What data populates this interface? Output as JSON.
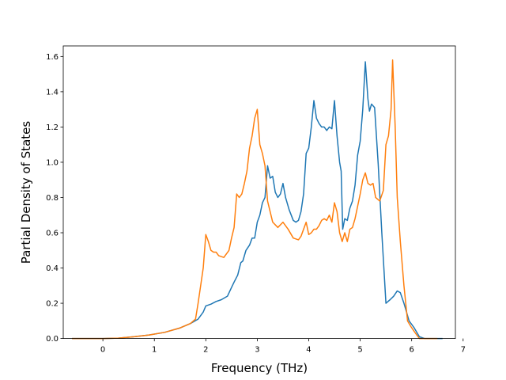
{
  "chart_data": {
    "type": "line",
    "title": "",
    "xlabel": "Frequency (THz)",
    "ylabel": "Partial Density of States",
    "xlim": [
      -0.77,
      6.85
    ],
    "ylim": [
      0.0,
      1.66
    ],
    "xticks": [
      0,
      1,
      2,
      3,
      4,
      5,
      6,
      7
    ],
    "yticks": [
      0.0,
      0.2,
      0.4,
      0.6,
      0.8,
      1.0,
      1.2,
      1.4,
      1.6
    ],
    "grid": false,
    "legend": "none",
    "series": [
      {
        "color": "#1f77b4",
        "points": [
          [
            -0.6,
            0.0
          ],
          [
            0.0,
            0.0
          ],
          [
            0.3,
            0.002
          ],
          [
            0.6,
            0.01
          ],
          [
            0.9,
            0.02
          ],
          [
            1.2,
            0.035
          ],
          [
            1.5,
            0.06
          ],
          [
            1.7,
            0.085
          ],
          [
            1.85,
            0.11
          ],
          [
            1.95,
            0.15
          ],
          [
            2.0,
            0.185
          ],
          [
            2.1,
            0.195
          ],
          [
            2.2,
            0.21
          ],
          [
            2.3,
            0.22
          ],
          [
            2.42,
            0.24
          ],
          [
            2.5,
            0.29
          ],
          [
            2.55,
            0.32
          ],
          [
            2.62,
            0.36
          ],
          [
            2.68,
            0.43
          ],
          [
            2.72,
            0.44
          ],
          [
            2.78,
            0.5
          ],
          [
            2.85,
            0.53
          ],
          [
            2.9,
            0.57
          ],
          [
            2.95,
            0.57
          ],
          [
            3.0,
            0.66
          ],
          [
            3.05,
            0.7
          ],
          [
            3.1,
            0.77
          ],
          [
            3.15,
            0.8
          ],
          [
            3.2,
            0.98
          ],
          [
            3.25,
            0.91
          ],
          [
            3.3,
            0.92
          ],
          [
            3.35,
            0.83
          ],
          [
            3.4,
            0.8
          ],
          [
            3.45,
            0.82
          ],
          [
            3.5,
            0.88
          ],
          [
            3.55,
            0.8
          ],
          [
            3.62,
            0.73
          ],
          [
            3.7,
            0.67
          ],
          [
            3.75,
            0.66
          ],
          [
            3.8,
            0.67
          ],
          [
            3.85,
            0.72
          ],
          [
            3.9,
            0.82
          ],
          [
            3.95,
            1.05
          ],
          [
            4.0,
            1.08
          ],
          [
            4.05,
            1.2
          ],
          [
            4.1,
            1.35
          ],
          [
            4.15,
            1.25
          ],
          [
            4.2,
            1.22
          ],
          [
            4.25,
            1.2
          ],
          [
            4.3,
            1.2
          ],
          [
            4.35,
            1.18
          ],
          [
            4.4,
            1.2
          ],
          [
            4.45,
            1.19
          ],
          [
            4.5,
            1.35
          ],
          [
            4.55,
            1.15
          ],
          [
            4.6,
            1.0
          ],
          [
            4.63,
            0.95
          ],
          [
            4.66,
            0.62
          ],
          [
            4.7,
            0.68
          ],
          [
            4.75,
            0.67
          ],
          [
            4.8,
            0.74
          ],
          [
            4.85,
            0.78
          ],
          [
            4.9,
            0.87
          ],
          [
            4.95,
            1.04
          ],
          [
            5.0,
            1.12
          ],
          [
            5.05,
            1.3
          ],
          [
            5.1,
            1.57
          ],
          [
            5.15,
            1.36
          ],
          [
            5.18,
            1.29
          ],
          [
            5.22,
            1.33
          ],
          [
            5.28,
            1.31
          ],
          [
            5.35,
            0.99
          ],
          [
            5.42,
            0.6
          ],
          [
            5.5,
            0.2
          ],
          [
            5.58,
            0.22
          ],
          [
            5.65,
            0.24
          ],
          [
            5.72,
            0.27
          ],
          [
            5.78,
            0.26
          ],
          [
            5.85,
            0.2
          ],
          [
            5.95,
            0.1
          ],
          [
            6.05,
            0.06
          ],
          [
            6.15,
            0.01
          ],
          [
            6.25,
            0.0
          ],
          [
            6.6,
            0.0
          ]
        ]
      },
      {
        "color": "#ff7f0e",
        "points": [
          [
            -0.6,
            0.0
          ],
          [
            0.0,
            0.0
          ],
          [
            0.3,
            0.002
          ],
          [
            0.6,
            0.01
          ],
          [
            0.9,
            0.02
          ],
          [
            1.2,
            0.035
          ],
          [
            1.5,
            0.06
          ],
          [
            1.7,
            0.085
          ],
          [
            1.8,
            0.11
          ],
          [
            1.85,
            0.2
          ],
          [
            1.9,
            0.3
          ],
          [
            1.95,
            0.4
          ],
          [
            2.0,
            0.59
          ],
          [
            2.05,
            0.55
          ],
          [
            2.1,
            0.5
          ],
          [
            2.15,
            0.49
          ],
          [
            2.2,
            0.49
          ],
          [
            2.25,
            0.47
          ],
          [
            2.35,
            0.46
          ],
          [
            2.45,
            0.5
          ],
          [
            2.5,
            0.57
          ],
          [
            2.55,
            0.63
          ],
          [
            2.6,
            0.82
          ],
          [
            2.65,
            0.8
          ],
          [
            2.7,
            0.82
          ],
          [
            2.75,
            0.88
          ],
          [
            2.8,
            0.95
          ],
          [
            2.85,
            1.08
          ],
          [
            2.9,
            1.15
          ],
          [
            2.95,
            1.25
          ],
          [
            3.0,
            1.3
          ],
          [
            3.05,
            1.1
          ],
          [
            3.1,
            1.05
          ],
          [
            3.15,
            0.98
          ],
          [
            3.2,
            0.78
          ],
          [
            3.25,
            0.72
          ],
          [
            3.3,
            0.66
          ],
          [
            3.4,
            0.63
          ],
          [
            3.5,
            0.66
          ],
          [
            3.6,
            0.62
          ],
          [
            3.7,
            0.57
          ],
          [
            3.8,
            0.56
          ],
          [
            3.85,
            0.58
          ],
          [
            3.9,
            0.62
          ],
          [
            3.95,
            0.66
          ],
          [
            4.0,
            0.59
          ],
          [
            4.05,
            0.6
          ],
          [
            4.1,
            0.62
          ],
          [
            4.15,
            0.62
          ],
          [
            4.2,
            0.64
          ],
          [
            4.25,
            0.67
          ],
          [
            4.3,
            0.68
          ],
          [
            4.35,
            0.67
          ],
          [
            4.4,
            0.7
          ],
          [
            4.45,
            0.66
          ],
          [
            4.5,
            0.77
          ],
          [
            4.55,
            0.72
          ],
          [
            4.6,
            0.6
          ],
          [
            4.65,
            0.55
          ],
          [
            4.7,
            0.6
          ],
          [
            4.75,
            0.55
          ],
          [
            4.8,
            0.62
          ],
          [
            4.85,
            0.63
          ],
          [
            4.9,
            0.68
          ],
          [
            4.95,
            0.75
          ],
          [
            5.0,
            0.82
          ],
          [
            5.05,
            0.9
          ],
          [
            5.1,
            0.94
          ],
          [
            5.15,
            0.88
          ],
          [
            5.2,
            0.87
          ],
          [
            5.25,
            0.88
          ],
          [
            5.3,
            0.8
          ],
          [
            5.38,
            0.78
          ],
          [
            5.45,
            0.84
          ],
          [
            5.5,
            1.1
          ],
          [
            5.55,
            1.15
          ],
          [
            5.6,
            1.3
          ],
          [
            5.63,
            1.58
          ],
          [
            5.68,
            1.2
          ],
          [
            5.72,
            0.8
          ],
          [
            5.78,
            0.55
          ],
          [
            5.85,
            0.3
          ],
          [
            5.92,
            0.1
          ],
          [
            5.98,
            0.07
          ],
          [
            6.05,
            0.04
          ],
          [
            6.1,
            0.02
          ],
          [
            6.15,
            0.0
          ],
          [
            6.5,
            0.0
          ]
        ]
      }
    ]
  }
}
